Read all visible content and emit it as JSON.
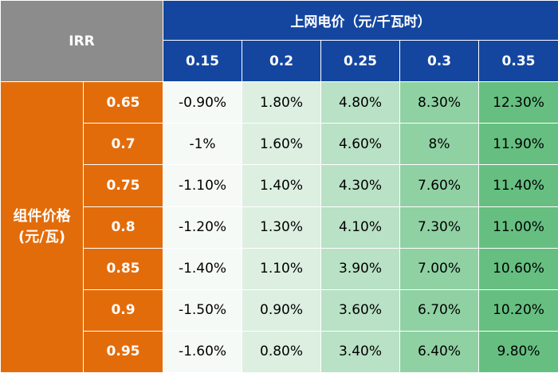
{
  "corner_label": "IRR",
  "col_group_title": "上网电价（元/千瓦时）",
  "row_group_label_line1": "组件价格",
  "row_group_label_line2": "(元/瓦)",
  "col_headers": [
    "0.15",
    "0.2",
    "0.25",
    "0.3",
    "0.35"
  ],
  "rows": [
    {
      "label": "0.65",
      "values": [
        "-0.90%",
        "1.80%",
        "4.80%",
        "8.30%",
        "12.30%"
      ]
    },
    {
      "label": "0.7",
      "values": [
        "-1%",
        "1.60%",
        "4.60%",
        "8%",
        "11.90%"
      ]
    },
    {
      "label": "0.75",
      "values": [
        "-1.10%",
        "1.40%",
        "4.30%",
        "7.60%",
        "11.40%"
      ]
    },
    {
      "label": "0.8",
      "values": [
        "-1.20%",
        "1.30%",
        "4.10%",
        "7.30%",
        "11.00%"
      ]
    },
    {
      "label": "0.85",
      "values": [
        "-1.40%",
        "1.10%",
        "3.90%",
        "7.00%",
        "10.60%"
      ]
    },
    {
      "label": "0.9",
      "values": [
        "-1.50%",
        "0.90%",
        "3.60%",
        "6.70%",
        "10.20%"
      ]
    },
    {
      "label": "0.95",
      "values": [
        "-1.60%",
        "0.80%",
        "3.40%",
        "6.40%",
        "9.80%"
      ]
    }
  ],
  "colors": {
    "header_blue": "#1446a0",
    "row_orange": "#e36c0a",
    "corner_gray": "#8c8c8c",
    "heat_scale": [
      "#f6faf7",
      "#dcefe1",
      "#b9e1c5",
      "#8fd1a3",
      "#66bf81"
    ]
  }
}
